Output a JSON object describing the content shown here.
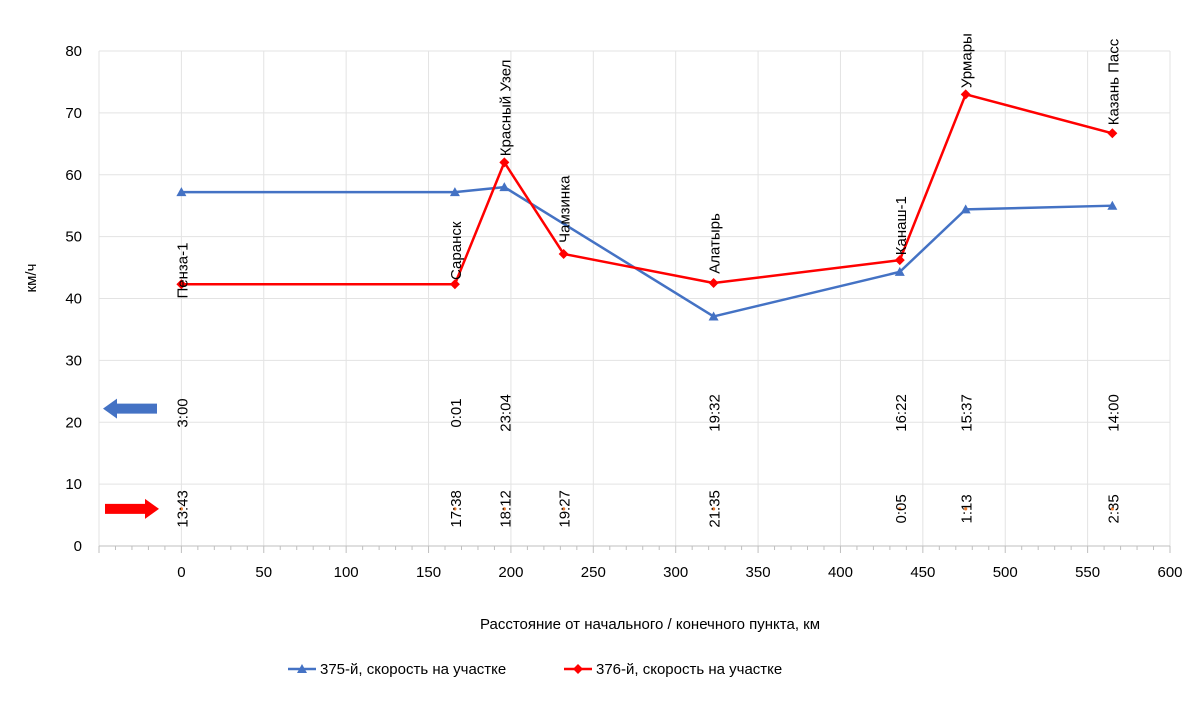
{
  "chart_data": {
    "type": "line",
    "ylabel": "км/ч",
    "xlabel": "Расстояние от начального / конечного пункта, км",
    "xlim": [
      -50,
      600
    ],
    "ylim": [
      0,
      80
    ],
    "x_ticks": [
      0,
      50,
      100,
      150,
      200,
      250,
      300,
      350,
      400,
      450,
      500,
      550,
      600
    ],
    "y_ticks": [
      0,
      10,
      20,
      30,
      40,
      50,
      60,
      70,
      80
    ],
    "grid": true,
    "legend_position": "bottom",
    "series": [
      {
        "name": "375-й, скорость на участке",
        "color": "#4472C4",
        "marker": "triangle",
        "x": [
          0,
          166,
          196,
          323,
          436,
          476,
          565
        ],
        "values": [
          57.2,
          57.2,
          58.0,
          37.1,
          44.3,
          54.4,
          55.0
        ]
      },
      {
        "name": "376-й, скорость на участке",
        "color": "#FF0000",
        "marker": "diamond",
        "x": [
          0,
          166,
          196,
          232,
          323,
          436,
          476,
          565
        ],
        "values": [
          42.3,
          42.3,
          62.0,
          47.2,
          42.5,
          46.2,
          73.0,
          66.7
        ]
      }
    ],
    "stations": [
      {
        "x": 0,
        "name": "Пенза-1",
        "label_y": 40.0
      },
      {
        "x": 166,
        "name": "Саранск",
        "label_y": 43.0
      },
      {
        "x": 196,
        "name": "Красный Узел",
        "label_y": 63.0
      },
      {
        "x": 232,
        "name": "Чамзинка",
        "label_y": 49.0
      },
      {
        "x": 323,
        "name": "Алатырь",
        "label_y": 44.0
      },
      {
        "x": 436,
        "name": "Канаш-1",
        "label_y": 47.0
      },
      {
        "x": 476,
        "name": "Урмары",
        "label_y": 74.0
      },
      {
        "x": 565,
        "name": "Казань Пасс",
        "label_y": 68.0
      }
    ],
    "times_375": [
      {
        "x": 0,
        "time": "3:00"
      },
      {
        "x": 166,
        "time": "0:01"
      },
      {
        "x": 196,
        "time": "23:04"
      },
      {
        "x": 323,
        "time": "19:32"
      },
      {
        "x": 436,
        "time": "16:22"
      },
      {
        "x": 476,
        "time": "15:37"
      },
      {
        "x": 565,
        "time": "14:00"
      }
    ],
    "times_376": [
      {
        "x": 0,
        "time": "13:43"
      },
      {
        "x": 166,
        "time": "17:38"
      },
      {
        "x": 196,
        "time": "18:12"
      },
      {
        "x": 232,
        "time": "19:27"
      },
      {
        "x": 323,
        "time": "21:35"
      },
      {
        "x": 436,
        "time": "0:05"
      },
      {
        "x": 476,
        "time": "1:13"
      },
      {
        "x": 565,
        "time": "2:35"
      }
    ],
    "times_375_y": 21.5,
    "times_376_y": 6.0,
    "arrow_375": {
      "direction": "left",
      "color": "#4472C4",
      "y": 22.2
    },
    "arrow_376": {
      "direction": "right",
      "color": "#FF0000",
      "y": 6.0
    }
  }
}
